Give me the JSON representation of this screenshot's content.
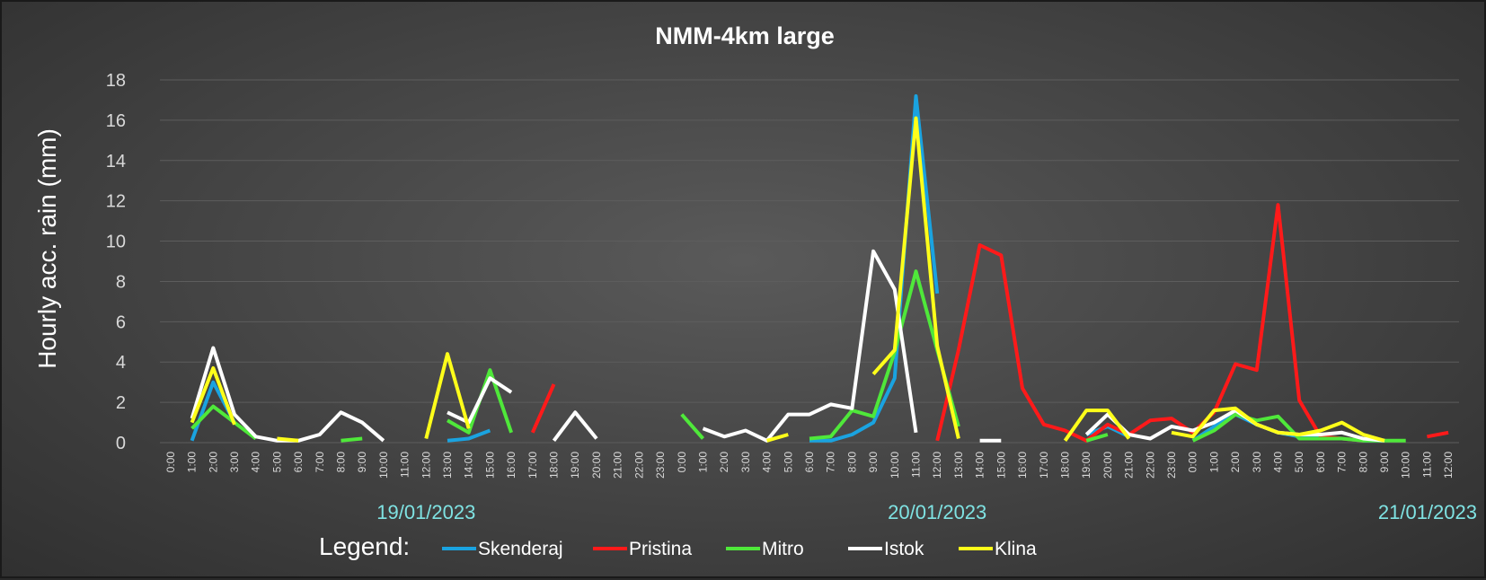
{
  "chart_data": {
    "type": "line",
    "title": "NMM-4km large",
    "ylabel": "Hourly acc. rain (mm)",
    "xlabel": "",
    "ylim": [
      0,
      18
    ],
    "yticks": [
      0,
      2,
      4,
      6,
      8,
      10,
      12,
      14,
      16,
      18
    ],
    "grid": "horizontal",
    "legend_title": "Legend:",
    "legend_position": "bottom",
    "categories": [
      "0:00",
      "1:00",
      "2:00",
      "3:00",
      "4:00",
      "5:00",
      "6:00",
      "7:00",
      "8:00",
      "9:00",
      "10:00",
      "11:00",
      "12:00",
      "13:00",
      "14:00",
      "15:00",
      "16:00",
      "17:00",
      "18:00",
      "19:00",
      "20:00",
      "21:00",
      "22:00",
      "23:00",
      "0:00",
      "1:00",
      "2:00",
      "3:00",
      "4:00",
      "5:00",
      "6:00",
      "7:00",
      "8:00",
      "9:00",
      "10:00",
      "11:00",
      "12:00",
      "13:00",
      "14:00",
      "15:00",
      "16:00",
      "17:00",
      "18:00",
      "19:00",
      "20:00",
      "21:00",
      "22:00",
      "23:00",
      "0:00",
      "1:00",
      "2:00",
      "3:00",
      "4:00",
      "5:00",
      "6:00",
      "7:00",
      "8:00",
      "9:00",
      "10:00",
      "11:00",
      "12:00"
    ],
    "date_labels": [
      {
        "text": "19/01/2023",
        "at_index": 12
      },
      {
        "text": "20/01/2023",
        "at_index": 36
      },
      {
        "text": "21/01/2023",
        "at_index": 60
      }
    ],
    "series": [
      {
        "name": "Skenderaj",
        "color": "#1aa3e0",
        "values": [
          null,
          0.1,
          3.0,
          1.0,
          null,
          null,
          null,
          null,
          null,
          null,
          null,
          null,
          null,
          0.1,
          0.2,
          0.6,
          null,
          null,
          null,
          null,
          null,
          null,
          null,
          null,
          null,
          null,
          null,
          null,
          null,
          null,
          0.1,
          0.1,
          0.4,
          1.0,
          3.2,
          17.2,
          7.4,
          null,
          null,
          null,
          null,
          null,
          null,
          0.4,
          0.8,
          0.3,
          null,
          null,
          0.1,
          0.8,
          1.4,
          0.9,
          0.5,
          0.3,
          0.3,
          0.2,
          0.1,
          0.1,
          null,
          null,
          null
        ]
      },
      {
        "name": "Pristina",
        "color": "#ff1a1a",
        "values": [
          null,
          null,
          null,
          null,
          null,
          null,
          null,
          null,
          null,
          null,
          null,
          null,
          null,
          null,
          null,
          null,
          null,
          0.5,
          2.9,
          null,
          null,
          null,
          null,
          null,
          null,
          null,
          null,
          null,
          null,
          null,
          null,
          null,
          null,
          null,
          null,
          null,
          0.1,
          4.6,
          9.8,
          9.3,
          2.7,
          0.9,
          0.6,
          0.1,
          0.9,
          0.4,
          1.1,
          1.2,
          0.5,
          1.5,
          3.9,
          3.6,
          11.8,
          2.1,
          0.3,
          0.2,
          0.1,
          null,
          null,
          0.3,
          0.5
        ]
      },
      {
        "name": "Mitro",
        "color": "#4fe83a",
        "values": [
          null,
          0.7,
          1.8,
          1.0,
          0.2,
          null,
          null,
          null,
          0.1,
          0.2,
          null,
          null,
          null,
          1.1,
          0.5,
          3.6,
          0.5,
          null,
          null,
          null,
          null,
          null,
          null,
          null,
          1.4,
          0.2,
          null,
          null,
          null,
          null,
          0.2,
          0.3,
          1.6,
          1.3,
          4.5,
          8.5,
          4.6,
          0.8,
          null,
          null,
          null,
          null,
          null,
          0.1,
          0.4,
          null,
          null,
          null,
          0.1,
          0.6,
          1.4,
          1.1,
          1.3,
          0.2,
          0.2,
          0.2,
          0.1,
          0.1,
          0.1,
          null,
          null
        ]
      },
      {
        "name": "Istok",
        "color": "#ffffff",
        "values": [
          null,
          1.2,
          4.7,
          1.4,
          0.3,
          0.1,
          0.1,
          0.4,
          1.5,
          1.0,
          0.1,
          null,
          null,
          1.5,
          1.0,
          3.2,
          2.5,
          null,
          0.1,
          1.5,
          0.2,
          null,
          null,
          null,
          null,
          0.7,
          0.3,
          0.6,
          0.1,
          1.4,
          1.4,
          1.9,
          1.7,
          9.5,
          7.6,
          0.5,
          null,
          null,
          0.1,
          0.1,
          null,
          null,
          null,
          0.4,
          1.4,
          0.4,
          0.2,
          0.8,
          0.6,
          1.0,
          1.6,
          0.9,
          0.5,
          0.4,
          0.4,
          0.5,
          0.2,
          0.1,
          null,
          null,
          null
        ]
      },
      {
        "name": "Klina",
        "color": "#ffff1a",
        "values": [
          null,
          1.0,
          3.7,
          0.9,
          null,
          0.2,
          0.1,
          null,
          null,
          null,
          null,
          null,
          0.2,
          4.4,
          0.7,
          null,
          null,
          null,
          null,
          null,
          null,
          null,
          null,
          null,
          null,
          null,
          null,
          null,
          0.1,
          0.4,
          null,
          null,
          null,
          3.4,
          4.6,
          16.1,
          4.8,
          0.2,
          null,
          null,
          null,
          null,
          0.1,
          1.6,
          1.6,
          0.2,
          null,
          0.5,
          0.3,
          1.6,
          1.7,
          0.9,
          0.5,
          0.4,
          0.6,
          1.0,
          0.4,
          0.1,
          null,
          null,
          null
        ]
      }
    ]
  }
}
